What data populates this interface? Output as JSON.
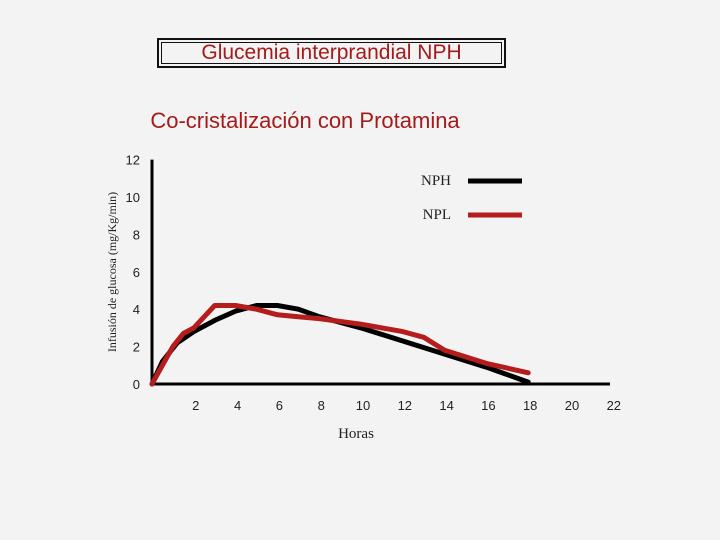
{
  "title": "Glucemia interprandial NPH",
  "subtitle": "Co-cristalización con Protamina",
  "colors": {
    "title": "#a51a1a",
    "nph": "#000000",
    "npl": "#b51c1c",
    "axis": "#000000"
  },
  "chart_data": {
    "type": "line",
    "xlabel": "Horas",
    "ylabel": "Infusión de glucosa (mg/Kg/min)",
    "xlim": [
      0,
      22
    ],
    "ylim": [
      0,
      12
    ],
    "xticks": [
      2,
      4,
      6,
      8,
      10,
      12,
      14,
      16,
      18,
      20,
      22
    ],
    "yticks": [
      0,
      2,
      4,
      6,
      8,
      10,
      12
    ],
    "grid": false,
    "legend_position": "top-right",
    "series": [
      {
        "name": "NPH",
        "color": "#000000",
        "x": [
          0,
          0.5,
          1.2,
          2,
          3,
          4,
          5,
          6,
          7,
          8,
          10,
          12,
          14,
          16,
          18
        ],
        "y": [
          0,
          1.2,
          2.2,
          2.8,
          3.4,
          3.9,
          4.2,
          4.2,
          4.0,
          3.6,
          3.0,
          2.3,
          1.6,
          0.9,
          0.1
        ]
      },
      {
        "name": "NPL",
        "color": "#b51c1c",
        "x": [
          0,
          0.5,
          1,
          1.5,
          2,
          3,
          4,
          5,
          6,
          7,
          8,
          10,
          12,
          13,
          14,
          16,
          18
        ],
        "y": [
          0,
          1.0,
          2.0,
          2.7,
          3.0,
          4.2,
          4.2,
          4.0,
          3.7,
          3.6,
          3.5,
          3.2,
          2.8,
          2.5,
          1.8,
          1.1,
          0.6
        ]
      }
    ]
  }
}
